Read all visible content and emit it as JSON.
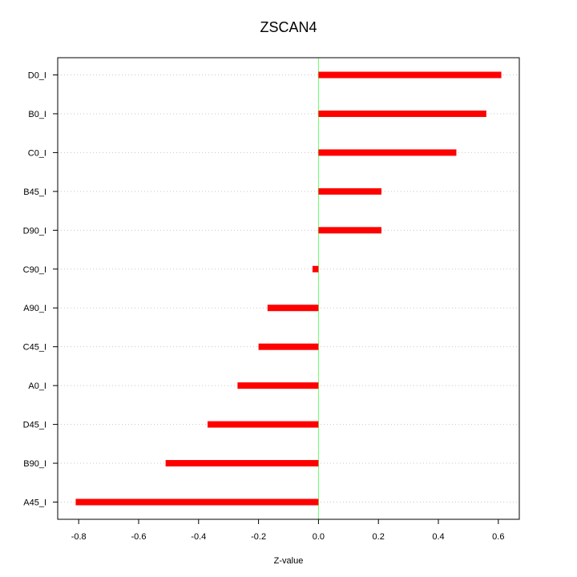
{
  "chart_data": {
    "type": "bar",
    "orientation": "horizontal",
    "title": "ZSCAN4",
    "xlabel": "Z-value",
    "ylabel": "",
    "categories": [
      "D0_I",
      "B0_I",
      "C0_I",
      "B45_I",
      "D90_I",
      "C90_I",
      "A90_I",
      "C45_I",
      "A0_I",
      "D45_I",
      "B90_I",
      "A45_I"
    ],
    "values": [
      0.61,
      0.56,
      0.46,
      0.21,
      0.21,
      -0.02,
      -0.17,
      -0.2,
      -0.27,
      -0.37,
      -0.51,
      -0.81
    ],
    "xlim": [
      -0.87,
      0.67
    ],
    "xticks": [
      -0.8,
      -0.6,
      -0.4,
      -0.2,
      0.0,
      0.2,
      0.4,
      0.6
    ],
    "xtick_labels": [
      "-0.8",
      "-0.6",
      "-0.4",
      "-0.2",
      "0.0",
      "0.2",
      "0.4",
      "0.6"
    ],
    "grid": "horizontal dotted",
    "reference_line": 0,
    "colors": {
      "bar": "#ff0000",
      "reference_line": "#66ff66",
      "grid": "#c8c8c8",
      "frame": "#000000"
    }
  }
}
